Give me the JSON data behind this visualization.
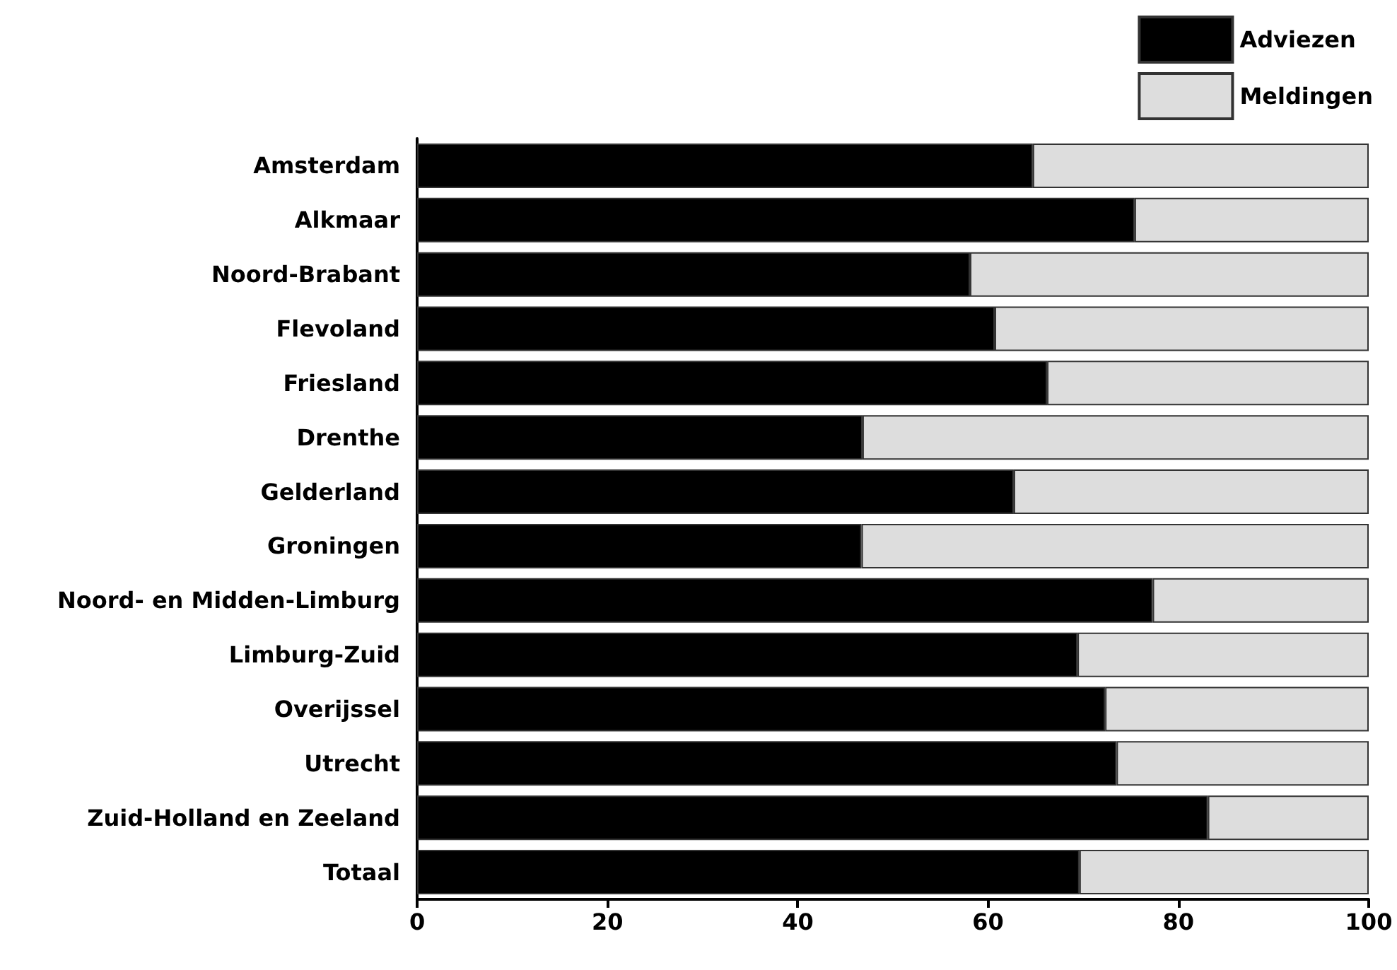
{
  "chart_data": {
    "type": "bar",
    "orientation": "horizontal",
    "stacked": true,
    "categories": [
      "Amsterdam",
      "Alkmaar",
      "Noord-Brabant",
      "Flevoland",
      "Friesland",
      "Drenthe",
      "Gelderland",
      "Groningen",
      "Noord- en Midden-Limburg",
      "Limburg-Zuid",
      "Overijssel",
      "Utrecht",
      "Zuid-Holland en Zeeland",
      "Totaal"
    ],
    "series": [
      {
        "name": "Adviezen",
        "color": "#000000",
        "values": [
          64.7,
          75.4,
          58.1,
          60.7,
          66.2,
          46.8,
          62.7,
          46.7,
          77.3,
          69.4,
          72.3,
          73.5,
          83.1,
          69.6
        ]
      },
      {
        "name": "Meldingen",
        "color": "#dddddd",
        "values": [
          35.3,
          24.6,
          41.9,
          39.3,
          33.8,
          53.2,
          37.3,
          53.3,
          22.7,
          30.6,
          27.7,
          26.5,
          16.9,
          30.4
        ]
      }
    ],
    "xlim": [
      0,
      100
    ],
    "xticks": [
      0,
      20,
      40,
      60,
      80,
      100
    ],
    "grid": false,
    "legend": "top right"
  }
}
